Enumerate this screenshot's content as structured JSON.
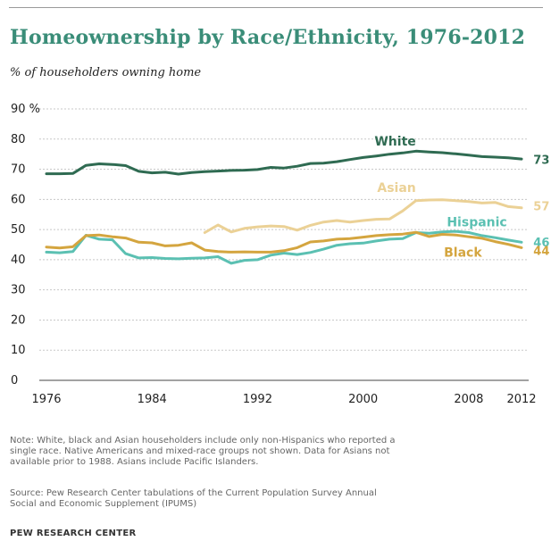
{
  "header": {
    "title": "Homeownership by Race/Ethnicity, 1976-2012",
    "subtitle": "% of householders owning home"
  },
  "footer": {
    "note_line1": "Note: White, black and Asian householders include only non-Hispanics who reported a",
    "note_line2": "single race. Native Americans and mixed-race groups not shown.  Data for Asians not",
    "note_line3": "available prior to 1988. Asians include Pacific Islanders.",
    "source_line1": "Source: Pew Research Center tabulations of the Current Population Survey Annual",
    "source_line2": "Social and Economic Supplement (IPUMS)",
    "brand": "PEW RESEARCH CENTER"
  },
  "colors": {
    "White": "#2f6b52",
    "Asian": "#ebd196",
    "Hispanic": "#5bc0b2",
    "Black": "#d4a53f",
    "grid": "#c8c8c8",
    "title": "#3a8d78"
  },
  "chart_data": {
    "type": "line",
    "title": "Homeownership by Race/Ethnicity, 1976-2012",
    "subtitle": "% of householders owning home",
    "xlabel": "",
    "ylabel": "",
    "xlim": [
      1976,
      2012
    ],
    "ylim": [
      0,
      90
    ],
    "x_ticks": [
      "1976",
      "1984",
      "1992",
      "2000",
      "2008",
      "2012"
    ],
    "y_ticks": [
      "0",
      "10",
      "20",
      "30",
      "40",
      "50",
      "60",
      "70",
      "80",
      "90 %"
    ],
    "grid": true,
    "legend": "inline labels at line ends",
    "series": [
      {
        "name": "White",
        "end_label": "73",
        "x": [
          1976,
          1977,
          1978,
          1979,
          1980,
          1981,
          1982,
          1983,
          1984,
          1985,
          1986,
          1987,
          1988,
          1989,
          1990,
          1991,
          1992,
          1993,
          1994,
          1995,
          1996,
          1997,
          1998,
          1999,
          2000,
          2001,
          2002,
          2003,
          2004,
          2005,
          2006,
          2007,
          2008,
          2009,
          2010,
          2011,
          2012
        ],
        "y": [
          68.5,
          68.5,
          68.6,
          71.3,
          71.8,
          71.6,
          71.2,
          69.3,
          68.8,
          69.0,
          68.4,
          68.9,
          69.2,
          69.4,
          69.6,
          69.7,
          69.9,
          70.6,
          70.4,
          71.0,
          71.9,
          72.0,
          72.5,
          73.2,
          73.9,
          74.4,
          75.0,
          75.4,
          76.0,
          75.7,
          75.5,
          75.1,
          74.7,
          74.2,
          74.0,
          73.8,
          73.4
        ]
      },
      {
        "name": "Asian",
        "end_label": "57",
        "x": [
          1988,
          1989,
          1990,
          1991,
          1992,
          1993,
          1994,
          1995,
          1996,
          1997,
          1998,
          1999,
          2000,
          2001,
          2002,
          2003,
          2004,
          2005,
          2006,
          2007,
          2008,
          2009,
          2010,
          2011,
          2012
        ],
        "y": [
          49.0,
          51.5,
          49.2,
          50.4,
          50.9,
          51.2,
          51.0,
          49.8,
          51.4,
          52.5,
          53.0,
          52.5,
          53.0,
          53.4,
          53.5,
          56.2,
          59.6,
          59.8,
          59.9,
          59.6,
          59.3,
          58.8,
          59.0,
          57.6,
          57.2
        ]
      },
      {
        "name": "Hispanic",
        "end_label": "46",
        "x": [
          1976,
          1977,
          1978,
          1979,
          1980,
          1981,
          1982,
          1983,
          1984,
          1985,
          1986,
          1987,
          1988,
          1989,
          1990,
          1991,
          1992,
          1993,
          1994,
          1995,
          1996,
          1997,
          1998,
          1999,
          2000,
          2001,
          2002,
          2003,
          2004,
          2005,
          2006,
          2007,
          2008,
          2009,
          2010,
          2011,
          2012
        ],
        "y": [
          42.5,
          42.3,
          42.7,
          48.1,
          46.8,
          46.6,
          42.0,
          40.6,
          40.7,
          40.4,
          40.3,
          40.5,
          40.6,
          41.0,
          38.8,
          39.8,
          40.0,
          41.5,
          42.2,
          41.7,
          42.4,
          43.5,
          44.8,
          45.3,
          45.5,
          46.2,
          46.8,
          47.0,
          49.0,
          48.8,
          49.2,
          49.4,
          49.0,
          48.0,
          47.3,
          46.5,
          45.8
        ]
      },
      {
        "name": "Black",
        "end_label": "44",
        "x": [
          1976,
          1977,
          1978,
          1979,
          1980,
          1981,
          1982,
          1983,
          1984,
          1985,
          1986,
          1987,
          1988,
          1989,
          1990,
          1991,
          1992,
          1993,
          1994,
          1995,
          1996,
          1997,
          1998,
          1999,
          2000,
          2001,
          2002,
          2003,
          2004,
          2005,
          2006,
          2007,
          2008,
          2009,
          2010,
          2011,
          2012
        ],
        "y": [
          44.2,
          43.9,
          44.3,
          48.0,
          48.2,
          47.6,
          47.2,
          45.8,
          45.6,
          44.6,
          44.8,
          45.6,
          43.2,
          42.7,
          42.5,
          42.6,
          42.5,
          42.5,
          43.0,
          44.0,
          45.9,
          46.2,
          46.8,
          47.0,
          47.5,
          48.0,
          48.3,
          48.5,
          49.1,
          47.7,
          48.4,
          48.2,
          47.6,
          47.1,
          46.0,
          45.1,
          44.0
        ]
      }
    ]
  }
}
